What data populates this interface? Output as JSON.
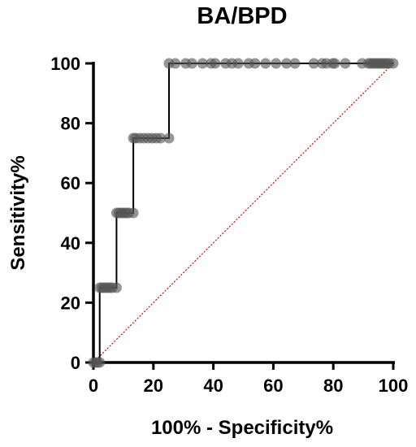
{
  "chart_data": {
    "type": "line",
    "title": "BA/BPD",
    "xlabel": "100% - Specificity%",
    "ylabel": "Sensitivity%",
    "xlim": [
      0,
      100
    ],
    "ylim": [
      0,
      100
    ],
    "xticks": [
      "0",
      "20",
      "40",
      "60",
      "80",
      "100"
    ],
    "yticks": [
      "0",
      "20",
      "40",
      "60",
      "80",
      "100"
    ],
    "grid": false,
    "legend": "none",
    "series": [
      {
        "kind": "roc-curve",
        "color": "#000000",
        "marker_color": "#555555",
        "x": [
          0,
          0.7,
          1.4,
          2.1,
          2.1,
          2.8,
          3.5,
          4.2,
          4.9,
          5.6,
          6.3,
          7.7,
          7.7,
          8.4,
          9.1,
          9.8,
          10.5,
          11.2,
          11.9,
          13.3,
          13.3,
          14.0,
          15.4,
          16.8,
          18.2,
          19.6,
          21.0,
          22.4,
          25.2,
          25.2,
          27.3,
          30.8,
          32.9,
          36.4,
          39.2,
          40.6,
          44.1,
          46.2,
          48.3,
          51.8,
          53.9,
          57.4,
          60.9,
          64.4,
          67.2,
          73.5,
          76.3,
          77.7,
          79.8,
          80.5,
          84.0,
          89.6,
          91.7,
          92.4,
          93.1,
          93.8,
          94.5,
          95.2,
          95.9,
          96.6,
          97.3,
          98.0,
          98.7,
          100
        ],
        "y": [
          0,
          0,
          0,
          0,
          25,
          25,
          25,
          25,
          25,
          25,
          25,
          25,
          50,
          50,
          50,
          50,
          50,
          50,
          50,
          50,
          75,
          75,
          75,
          75,
          75,
          75,
          75,
          75,
          75,
          100,
          100,
          100,
          100,
          100,
          100,
          100,
          100,
          100,
          100,
          100,
          100,
          100,
          100,
          100,
          100,
          100,
          100,
          100,
          100,
          100,
          100,
          100,
          100,
          100,
          100,
          100,
          100,
          100,
          100,
          100,
          100,
          100,
          100,
          100
        ]
      },
      {
        "kind": "reference-line",
        "color": "#e00000",
        "style": "dotted",
        "x": [
          0,
          100
        ],
        "y": [
          0,
          100
        ]
      }
    ]
  }
}
